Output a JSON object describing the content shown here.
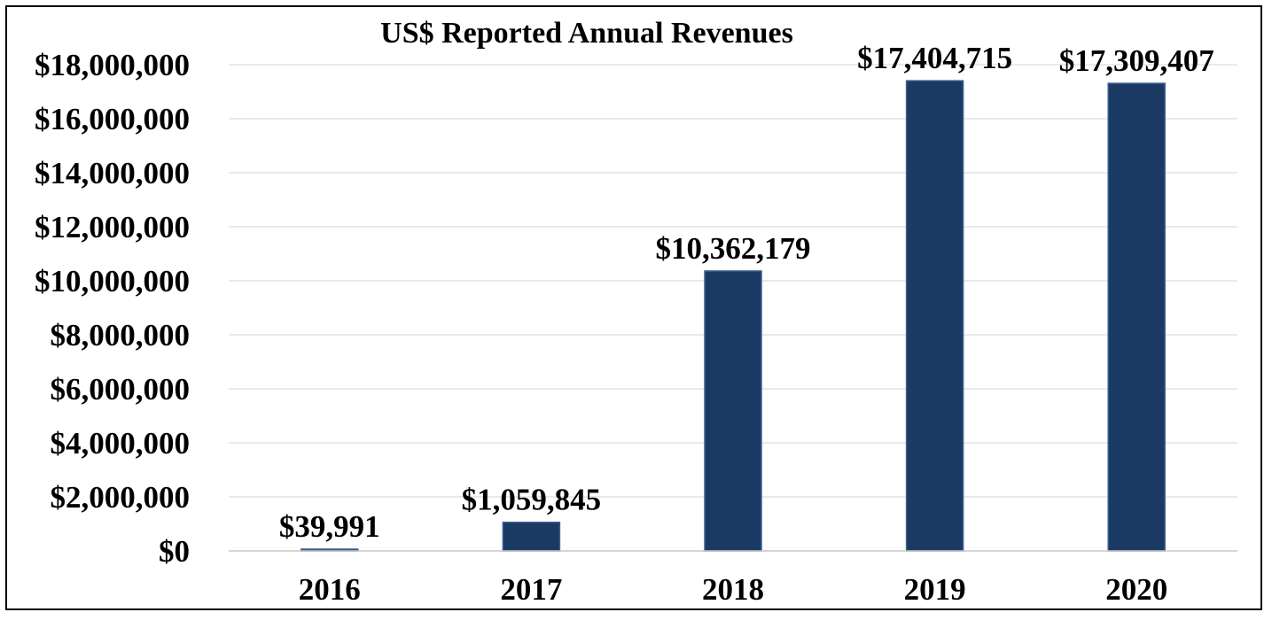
{
  "chart_data": {
    "type": "bar",
    "title": "US$ Reported Annual Revenues",
    "xlabel": "",
    "ylabel": "",
    "categories": [
      "2016",
      "2017",
      "2018",
      "2019",
      "2020"
    ],
    "values": [
      39991,
      1059845,
      10362179,
      17404715,
      17309407
    ],
    "data_labels": [
      "$39,991",
      "$1,059,845",
      "$10,362,179",
      "$17,404,715",
      "$17,309,407"
    ],
    "ylim": [
      0,
      18000000
    ],
    "y_ticks": [
      0,
      2000000,
      4000000,
      6000000,
      8000000,
      10000000,
      12000000,
      14000000,
      16000000,
      18000000
    ],
    "y_tick_labels": [
      "$0",
      "$2,000,000",
      "$4,000,000",
      "$6,000,000",
      "$8,000,000",
      "$10,000,000",
      "$12,000,000",
      "$14,000,000",
      "$16,000,000",
      "$18,000,000"
    ],
    "grid": true,
    "legend": "none",
    "bar_color": "#1a3a64",
    "bar_edge_color": "#3f5f8f"
  }
}
